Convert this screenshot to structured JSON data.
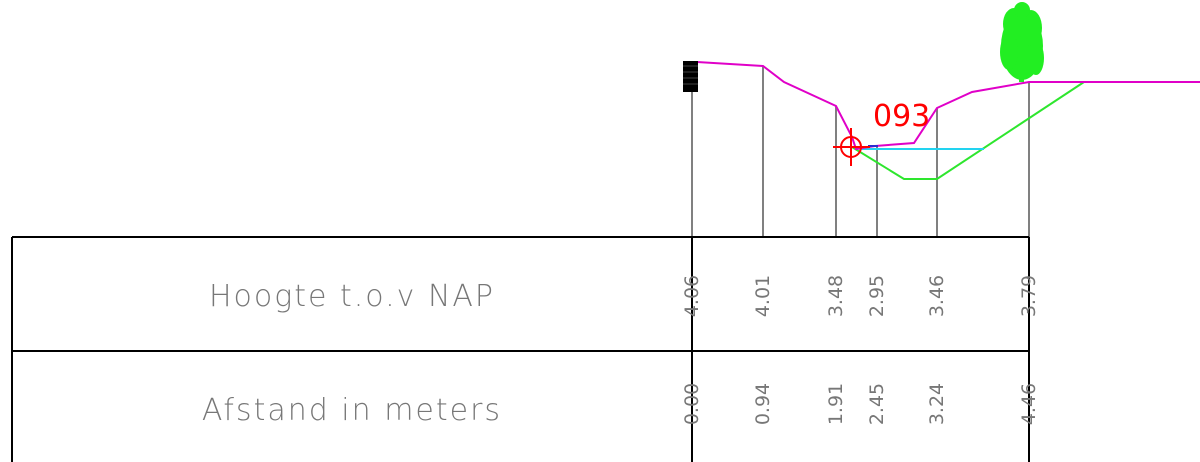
{
  "table": {
    "rows": [
      {
        "label": "Hoogte t.o.v NAP"
      },
      {
        "label": "Afstand in meters"
      }
    ]
  },
  "profile_points": [
    {
      "height": "4.06",
      "distance": "0.00"
    },
    {
      "height": "4.01",
      "distance": "0.94"
    },
    {
      "height": "3.48",
      "distance": "1.91"
    },
    {
      "height": "2.95",
      "distance": "2.45"
    },
    {
      "height": "3.46",
      "distance": "3.24"
    },
    {
      "height": "3.79",
      "distance": "4.46"
    }
  ],
  "marker": {
    "label": "093"
  },
  "colors": {
    "terrain": "#e000c8",
    "design": "#2ee62e",
    "water": "#22d3f0",
    "marker": "#ff0000",
    "tree": "#22ee22",
    "grid": "#000000",
    "ticks": "#808080",
    "text": "#777777"
  },
  "icons": {
    "post": "post-icon",
    "tree": "tree-icon",
    "survey": "survey-marker-icon"
  }
}
